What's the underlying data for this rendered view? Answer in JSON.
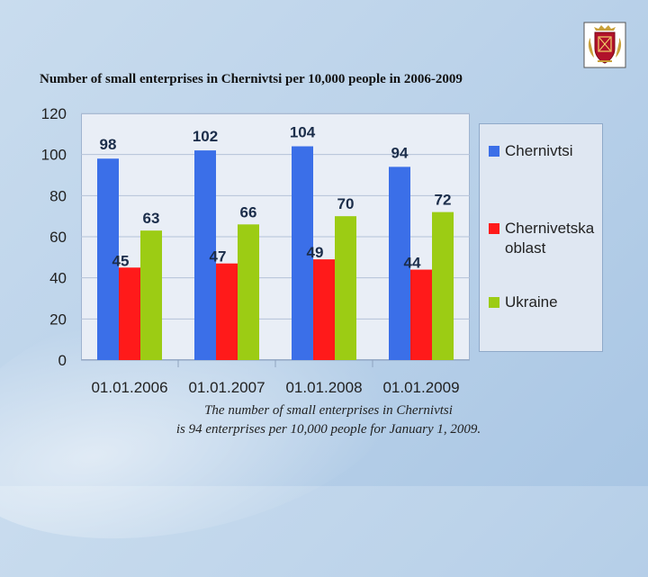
{
  "slide": {
    "title": "Number of small enterprises in Chernivtsi per 10,000 people in 2006-2009",
    "caption_line1": "The number of small enterprises in Chernivtsi",
    "caption_line2": "is 94 enterprises per 10,000 people for January 1, 2009."
  },
  "colors": {
    "chernivtsi": "#3b6fe8",
    "oblast": "#ff1a1a",
    "ukraine": "#9ccc14"
  },
  "chart_data": {
    "type": "bar",
    "title": "Number of small enterprises in Chernivtsi per 10,000 people in 2006-2009",
    "xlabel": "",
    "ylabel": "",
    "ylim": [
      0,
      120
    ],
    "yticks": [
      0,
      20,
      40,
      60,
      80,
      100,
      120
    ],
    "grid": true,
    "legend_position": "right",
    "categories": [
      "01.01.2006",
      "01.01.2007",
      "01.01.2008",
      "01.01.2009"
    ],
    "series": [
      {
        "name": "Chernivtsi",
        "color": "#3b6fe8",
        "values": [
          98,
          102,
          104,
          94
        ]
      },
      {
        "name": "Chernivetska oblast",
        "color": "#ff1a1a",
        "values": [
          45,
          47,
          49,
          44
        ]
      },
      {
        "name": "Ukraine",
        "color": "#9ccc14",
        "values": [
          63,
          66,
          70,
          72
        ]
      }
    ]
  }
}
